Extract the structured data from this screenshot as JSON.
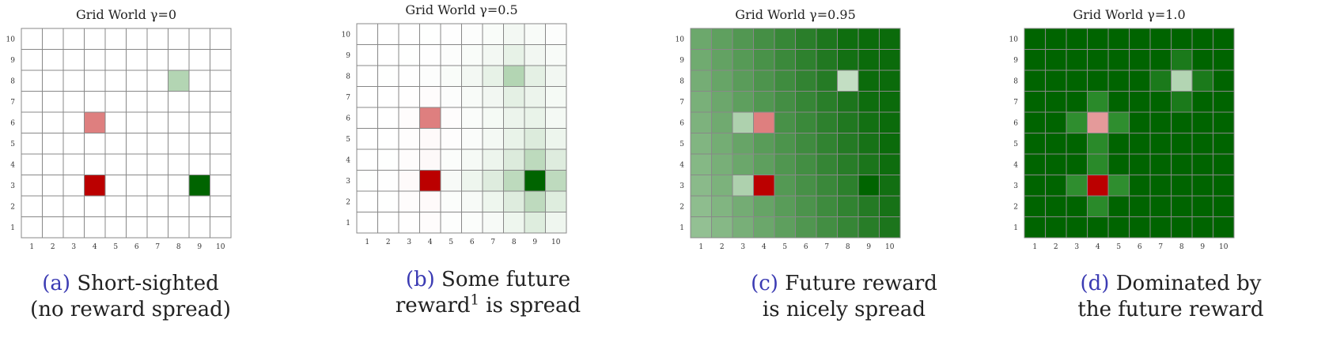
{
  "chart_data": [
    {
      "type": "heatmap",
      "title": "Grid World γ=0",
      "gamma": 0,
      "x_ticks": [
        1,
        2,
        3,
        4,
        5,
        6,
        7,
        8,
        9,
        10
      ],
      "y_ticks": [
        1,
        2,
        3,
        4,
        5,
        6,
        7,
        8,
        9,
        10
      ],
      "special_cells": [
        {
          "x": 4,
          "y": 6,
          "kind": "penalty",
          "color": "#de7f7f"
        },
        {
          "x": 4,
          "y": 3,
          "kind": "penalty",
          "color": "#bb0000"
        },
        {
          "x": 9,
          "y": 3,
          "kind": "reward",
          "color": "#006400"
        },
        {
          "x": 8,
          "y": 8,
          "kind": "reward",
          "color": "#b3d5b3"
        }
      ],
      "caption_label": "(a)",
      "caption_lines": [
        "Short-sighted",
        "(no reward spread)"
      ]
    },
    {
      "type": "heatmap",
      "title": "Grid World γ=0.5",
      "gamma": 0.5,
      "x_ticks": [
        1,
        2,
        3,
        4,
        5,
        6,
        7,
        8,
        9,
        10
      ],
      "y_ticks": [
        1,
        2,
        3,
        4,
        5,
        6,
        7,
        8,
        9,
        10
      ],
      "special_cells": [
        {
          "x": 4,
          "y": 6,
          "kind": "penalty",
          "color": "#de7f7f"
        },
        {
          "x": 4,
          "y": 3,
          "kind": "penalty",
          "color": "#bb0000"
        },
        {
          "x": 9,
          "y": 3,
          "kind": "reward",
          "color": "#006400"
        },
        {
          "x": 8,
          "y": 8,
          "kind": "reward",
          "color": "#b3d5b3"
        }
      ],
      "caption_label": "(b)",
      "caption_lines": [
        "Some future",
        "reward",
        "1",
        "is spread"
      ]
    },
    {
      "type": "heatmap",
      "title": "Grid World γ=0.95",
      "gamma": 0.95,
      "x_ticks": [
        1,
        2,
        3,
        4,
        5,
        6,
        7,
        8,
        9,
        10
      ],
      "y_ticks": [
        1,
        2,
        3,
        4,
        5,
        6,
        7,
        8,
        9,
        10
      ],
      "special_cells": [
        {
          "x": 4,
          "y": 6,
          "kind": "penalty",
          "color": "#de7f7f"
        },
        {
          "x": 4,
          "y": 3,
          "kind": "penalty",
          "color": "#bb0000"
        },
        {
          "x": 9,
          "y": 3,
          "kind": "reward",
          "color": "#006400"
        },
        {
          "x": 8,
          "y": 8,
          "kind": "reward",
          "color": "#c3dec3"
        }
      ],
      "caption_label": "(c)",
      "caption_lines": [
        "Future reward",
        "is nicely spread"
      ]
    },
    {
      "type": "heatmap",
      "title": "Grid World γ=1.0",
      "gamma": 1.0,
      "x_ticks": [
        1,
        2,
        3,
        4,
        5,
        6,
        7,
        8,
        9,
        10
      ],
      "y_ticks": [
        1,
        2,
        3,
        4,
        5,
        6,
        7,
        8,
        9,
        10
      ],
      "special_cells": [
        {
          "x": 4,
          "y": 6,
          "kind": "penalty",
          "color": "#e49a9a"
        },
        {
          "x": 4,
          "y": 3,
          "kind": "penalty",
          "color": "#bb0000"
        },
        {
          "x": 8,
          "y": 8,
          "kind": "reward",
          "color": "#b3d5b3"
        }
      ],
      "caption_label": "(d)",
      "caption_lines": [
        "Dominated by",
        "the future reward"
      ]
    }
  ],
  "colors": {
    "reward_dark": "#006400",
    "reward_light": "#ffffff",
    "penalty_dark": "#bb0000",
    "penalty_light": "#ffffff",
    "grid_line": "#888888",
    "caption_label": "#3b3bb3"
  }
}
